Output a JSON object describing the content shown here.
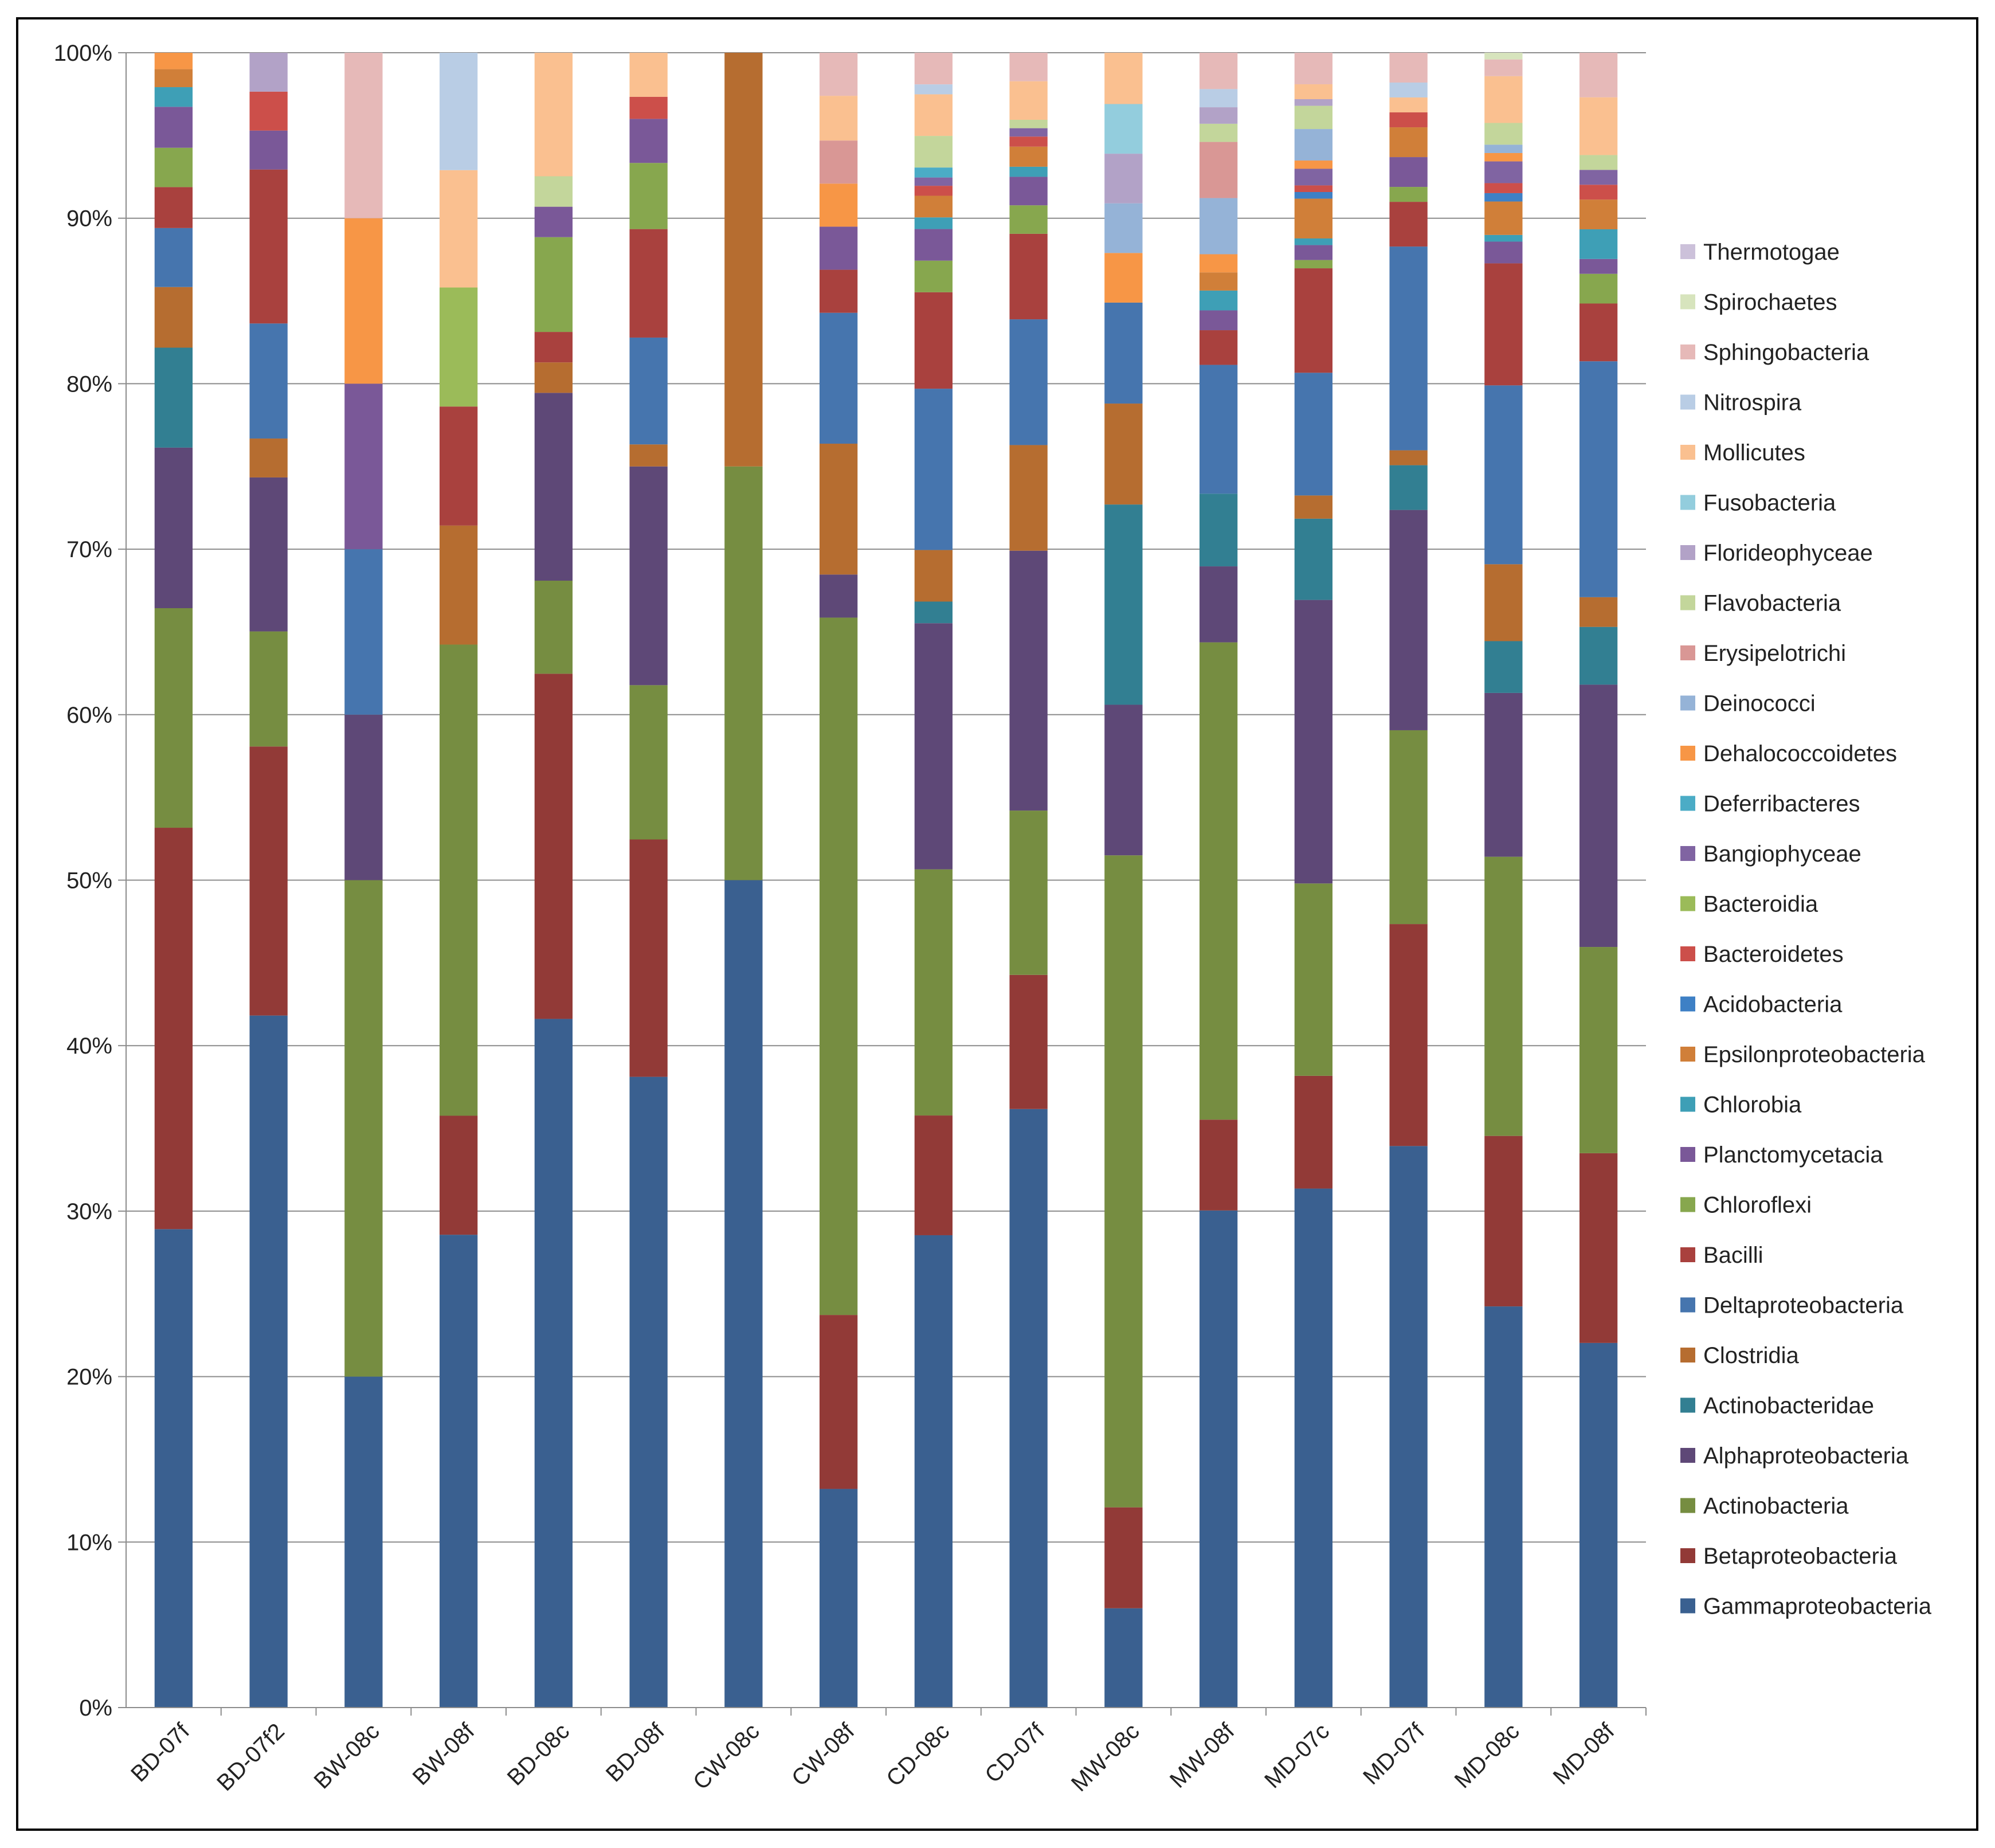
{
  "chart_data": {
    "type": "bar",
    "stacked": true,
    "percent_stacked": true,
    "title": "",
    "xlabel": "",
    "ylabel": "",
    "ylim": [
      0,
      100
    ],
    "y_ticks": [
      "0%",
      "10%",
      "20%",
      "30%",
      "40%",
      "50%",
      "60%",
      "70%",
      "80%",
      "90%",
      "100%"
    ],
    "grid": true,
    "legend_position": "right",
    "categories": [
      "BD-07f",
      "BD-07f2",
      "BW-08c",
      "BW-08f",
      "BD-08c",
      "BD-08f",
      "CW-08c",
      "CW-08f",
      "CD-08c",
      "CD-07f",
      "MW-08c",
      "MW-08f",
      "MD-07c",
      "MD-07f",
      "MD-08c",
      "MD-08f"
    ],
    "series": [
      {
        "name": "Gammaproteobacteria",
        "color": "#3A6090",
        "values": [
          29.2,
          40.9,
          15.4,
          28.6,
          40.7,
          37.2,
          40.0,
          13.2,
          28.4,
          35.7,
          6.0,
          30.1,
          31.3,
          33.9,
          24.0,
          22.1
        ]
      },
      {
        "name": "Betaproteobacteria",
        "color": "#923A37",
        "values": [
          24.5,
          15.9,
          0,
          7.2,
          20.4,
          14.0,
          0,
          10.5,
          7.2,
          8.0,
          6.1,
          5.5,
          6.8,
          13.4,
          10.2,
          11.5
        ]
      },
      {
        "name": "Actinobacteria",
        "color": "#768D41",
        "values": [
          13.4,
          6.8,
          23.1,
          28.5,
          5.5,
          9.1,
          20.0,
          42.1,
          14.8,
          9.8,
          39.4,
          28.9,
          11.6,
          11.7,
          16.7,
          12.5
        ]
      },
      {
        "name": "Alphaproteobacteria",
        "color": "#5E4877",
        "values": [
          9.8,
          9.1,
          7.7,
          0,
          11.1,
          12.9,
          0,
          2.6,
          14.8,
          15.5,
          9.1,
          4.6,
          17.1,
          13.3,
          9.8,
          15.9
        ]
      },
      {
        "name": "Actinobacteridae",
        "color": "#327F92",
        "values": [
          6.1,
          0,
          0,
          0,
          0,
          0,
          0,
          0,
          1.3,
          0,
          12.1,
          4.4,
          4.9,
          2.7,
          3.1,
          3.5
        ]
      },
      {
        "name": "Clostridia",
        "color": "#B66D30",
        "values": [
          3.7,
          2.3,
          0,
          7.2,
          1.8,
          1.3,
          20.0,
          7.9,
          3.1,
          6.3,
          6.1,
          0,
          1.4,
          0.9,
          4.6,
          1.8
        ]
      },
      {
        "name": "Deltaproteobacteria",
        "color": "#4675AE",
        "values": [
          3.6,
          6.8,
          7.7,
          0,
          0,
          6.3,
          0,
          7.9,
          9.7,
          7.5,
          6.1,
          7.8,
          7.4,
          12.3,
          10.7,
          14.3
        ]
      },
      {
        "name": "Bacilli",
        "color": "#A9413E",
        "values": [
          2.5,
          9.1,
          0,
          7.2,
          1.8,
          6.4,
          0,
          2.6,
          5.8,
          5.1,
          0,
          2.1,
          6.3,
          2.7,
          7.3,
          3.5
        ]
      },
      {
        "name": "Chloroflexi",
        "color": "#87A74E",
        "values": [
          2.4,
          0,
          0,
          0,
          5.6,
          3.9,
          0,
          0,
          1.9,
          1.7,
          0,
          0,
          0.5,
          0.9,
          0,
          1.8
        ]
      },
      {
        "name": "Planctomycetacia",
        "color": "#7A5898",
        "values": [
          2.5,
          2.3,
          7.7,
          0,
          1.8,
          2.6,
          0,
          2.6,
          1.9,
          1.7,
          0,
          1.2,
          0.9,
          1.8,
          1.3,
          0.9
        ]
      },
      {
        "name": "Chlorobia",
        "color": "#3E9FB6",
        "values": [
          1.2,
          0,
          0,
          0,
          0,
          0,
          0,
          0,
          0.7,
          0.6,
          0,
          1.2,
          0.4,
          0,
          0.4,
          1.8
        ]
      },
      {
        "name": "Epsilonproteobacteria",
        "color": "#D07F39",
        "values": [
          1.1,
          0,
          0,
          0,
          0,
          0,
          0,
          0,
          1.3,
          1.2,
          0,
          1.1,
          2.4,
          1.8,
          2.0,
          1.8
        ]
      },
      {
        "name": "Acidobacteria",
        "color": "#3E80C5",
        "values": [
          0,
          0,
          0,
          0,
          0,
          0,
          0,
          0,
          0,
          0,
          0,
          0,
          0.4,
          0,
          0.5,
          0
        ]
      },
      {
        "name": "Bacteroidetes",
        "color": "#CC4F4A",
        "values": [
          0,
          2.3,
          0,
          0,
          0,
          1.3,
          0,
          0,
          0.6,
          0.6,
          0,
          0,
          0.4,
          0.9,
          0.6,
          0.9
        ]
      },
      {
        "name": "Bacteroidia",
        "color": "#9BBB59",
        "values": [
          0,
          0,
          0,
          7.2,
          0,
          0,
          0,
          0,
          0,
          0,
          0,
          0,
          0,
          0,
          0,
          0
        ]
      },
      {
        "name": "Bangiophyceae",
        "color": "#8064A2",
        "values": [
          0,
          0,
          0,
          0,
          0,
          0,
          0,
          0,
          0.5,
          0.5,
          0,
          0,
          1.0,
          0,
          1.3,
          0.9
        ]
      },
      {
        "name": "Deferribacteres",
        "color": "#4BACC6",
        "values": [
          0,
          0,
          0,
          0,
          0,
          0,
          0,
          0,
          0.6,
          0,
          0,
          0,
          0,
          0,
          0,
          0
        ]
      },
      {
        "name": "Dehalococcoidetes",
        "color": "#F79646",
        "values": [
          1.0,
          0,
          7.7,
          0,
          0,
          0,
          0,
          2.6,
          0,
          0,
          3.0,
          1.1,
          0.5,
          0,
          0.5,
          0
        ]
      },
      {
        "name": "Deinococci",
        "color": "#95B3D7",
        "values": [
          0,
          0,
          0,
          0,
          0,
          0,
          0,
          0,
          0,
          0,
          3.0,
          3.4,
          1.9,
          0,
          0.5,
          0
        ]
      },
      {
        "name": "Erysipelotrichi",
        "color": "#D99795",
        "values": [
          0,
          0,
          0,
          0,
          0,
          0,
          0,
          2.6,
          0,
          0,
          0,
          3.4,
          0,
          0,
          0,
          0
        ]
      },
      {
        "name": "Flavobacteria",
        "color": "#C3D69B",
        "values": [
          0,
          0,
          0,
          0,
          1.8,
          0,
          0,
          0,
          1.9,
          0.5,
          0,
          1.1,
          1.4,
          0,
          1.3,
          0.9
        ]
      },
      {
        "name": "Florideophyceae",
        "color": "#B2A2C7",
        "values": [
          0,
          2.3,
          0,
          0,
          0,
          0,
          0,
          0,
          0,
          0,
          3.0,
          1.0,
          0.4,
          0,
          0,
          0
        ]
      },
      {
        "name": "Fusobacteria",
        "color": "#93CDDD",
        "values": [
          0,
          0,
          0,
          0,
          0,
          0,
          0,
          0,
          0,
          0,
          3.0,
          0,
          0,
          0,
          0,
          0
        ]
      },
      {
        "name": "Mollicutes",
        "color": "#FAC090",
        "values": [
          0,
          0,
          0,
          7.1,
          7.3,
          2.6,
          0,
          2.7,
          2.5,
          2.3,
          3.1,
          0,
          0.9,
          0.9,
          2.8,
          3.5
        ]
      },
      {
        "name": "Nitrospira",
        "color": "#B9CDE5",
        "values": [
          0,
          0,
          0,
          7.1,
          0,
          0,
          0,
          0,
          0.6,
          0,
          0,
          1.1,
          0,
          0.9,
          0,
          0
        ]
      },
      {
        "name": "Sphingobacteria",
        "color": "#E6B9B8",
        "values": [
          0,
          0,
          7.7,
          0,
          0,
          0,
          0,
          2.6,
          1.9,
          1.7,
          0,
          2.2,
          1.9,
          1.8,
          1.0,
          2.7
        ]
      },
      {
        "name": "Spirochaetes",
        "color": "#D7E4BD",
        "values": [
          0,
          0,
          0,
          0,
          0,
          0,
          0,
          0,
          0,
          0,
          0,
          0,
          0,
          0,
          0.4,
          0
        ]
      },
      {
        "name": "Thermotogae",
        "color": "#CCC1DA",
        "values": [
          0,
          0,
          0,
          0,
          0,
          0,
          0,
          0,
          0,
          0,
          0,
          0,
          0,
          0,
          0,
          0
        ]
      }
    ]
  }
}
